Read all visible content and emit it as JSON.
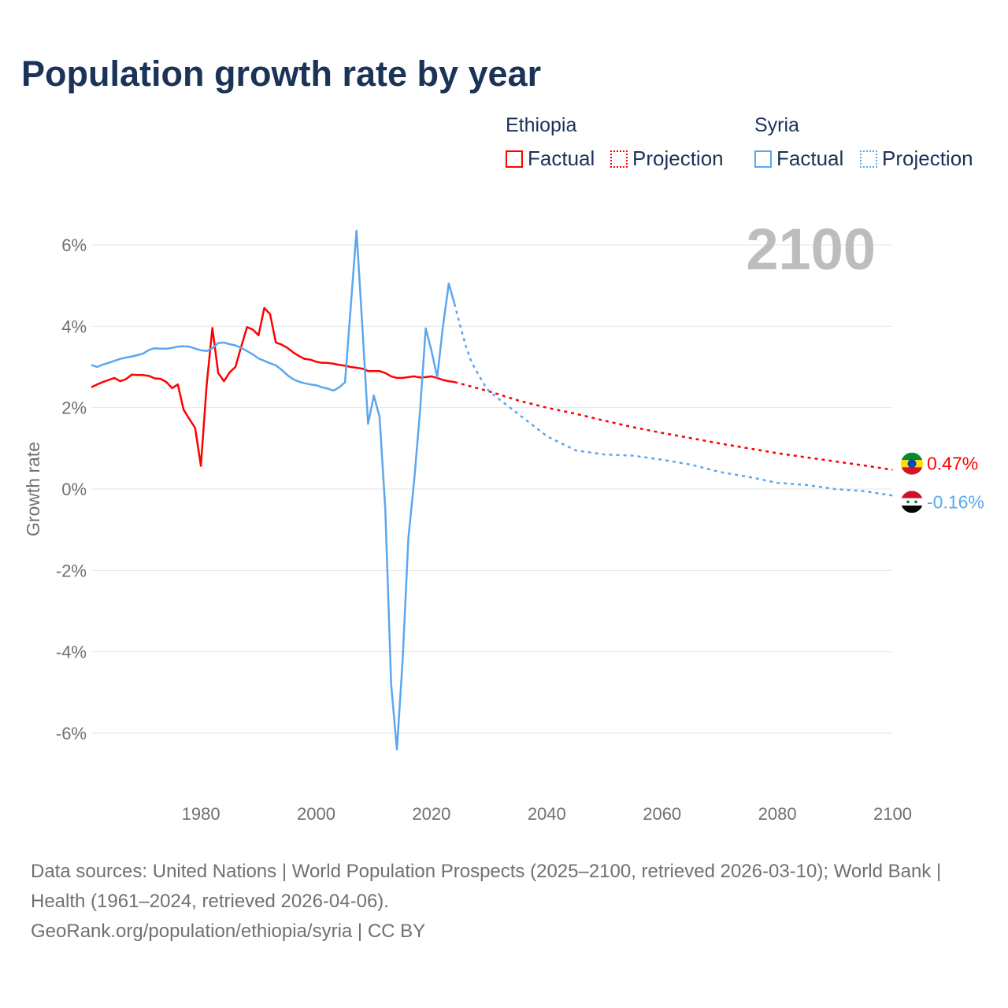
{
  "chart_data": {
    "type": "line",
    "title": "Population growth rate by year",
    "xlabel": "",
    "ylabel": "Growth rate",
    "xlim": [
      1961,
      2100
    ],
    "ylim": [
      -6.5,
      6.5
    ],
    "x_ticks": [
      "1980",
      "2000",
      "2020",
      "2040",
      "2060",
      "2080",
      "2100"
    ],
    "y_ticks": [
      "6%",
      "4%",
      "2%",
      "0%",
      "-2%",
      "-4%",
      "-6%"
    ],
    "y_tick_values": [
      6,
      4,
      2,
      0,
      -2,
      -4,
      -6
    ],
    "x_tick_values": [
      1980,
      2000,
      2020,
      2040,
      2060,
      2080,
      2100
    ],
    "grid": true,
    "year_label": "2100",
    "legend": {
      "groups": [
        {
          "name": "Ethiopia",
          "items": [
            "Factual",
            "Projection"
          ]
        },
        {
          "name": "Syria",
          "items": [
            "Factual",
            "Projection"
          ]
        }
      ],
      "placement": "top-right"
    },
    "series": [
      {
        "name": "Ethiopia",
        "color": "#ff0000",
        "end_label": "0.47%",
        "factual_start_year": 1961,
        "factual": [
          2.5,
          2.57,
          2.63,
          2.68,
          2.73,
          2.65,
          2.7,
          2.81,
          2.8,
          2.8,
          2.78,
          2.72,
          2.71,
          2.63,
          2.48,
          2.57,
          1.95,
          1.72,
          1.5,
          0.57,
          2.55,
          3.96,
          2.85,
          2.65,
          2.87,
          3.0,
          3.5,
          3.98,
          3.92,
          3.78,
          4.45,
          4.3,
          3.6,
          3.55,
          3.47,
          3.36,
          3.27,
          3.2,
          3.18,
          3.13,
          3.1,
          3.1,
          3.08,
          3.05,
          3.03,
          3.0,
          2.98,
          2.96,
          2.9,
          2.9,
          2.9,
          2.85,
          2.77,
          2.73,
          2.73,
          2.75,
          2.77,
          2.74,
          2.75,
          2.77,
          2.73,
          2.68,
          2.65,
          2.63
        ],
        "projection_years": [
          2024,
          2030,
          2035,
          2040,
          2045,
          2050,
          2055,
          2060,
          2065,
          2070,
          2075,
          2080,
          2085,
          2090,
          2095,
          2100
        ],
        "projection": [
          2.63,
          2.4,
          2.18,
          2.0,
          1.85,
          1.68,
          1.52,
          1.38,
          1.25,
          1.12,
          1.0,
          0.88,
          0.78,
          0.68,
          0.58,
          0.47
        ]
      },
      {
        "name": "Syria",
        "color": "#5ba7ef",
        "end_label": "-0.16%",
        "factual_start_year": 1961,
        "factual": [
          3.05,
          3.0,
          3.06,
          3.1,
          3.15,
          3.2,
          3.23,
          3.26,
          3.29,
          3.33,
          3.42,
          3.46,
          3.45,
          3.45,
          3.47,
          3.5,
          3.51,
          3.5,
          3.45,
          3.41,
          3.39,
          3.46,
          3.59,
          3.6,
          3.56,
          3.53,
          3.47,
          3.39,
          3.31,
          3.21,
          3.15,
          3.09,
          3.04,
          2.93,
          2.8,
          2.7,
          2.64,
          2.6,
          2.57,
          2.55,
          2.5,
          2.47,
          2.42,
          2.5,
          2.62,
          4.48,
          6.35,
          4.0,
          1.6,
          2.3,
          1.77,
          -0.5,
          -4.8,
          -6.4,
          -4.2,
          -1.2,
          0.2,
          1.9,
          3.95,
          3.4,
          2.75,
          4.0,
          5.05,
          4.55
        ],
        "projection_years": [
          2024,
          2025,
          2026,
          2027,
          2028,
          2029,
          2030,
          2035,
          2040,
          2045,
          2050,
          2055,
          2060,
          2065,
          2070,
          2075,
          2080,
          2085,
          2090,
          2095,
          2100
        ],
        "projection": [
          4.55,
          4.0,
          3.5,
          3.1,
          2.85,
          2.6,
          2.4,
          1.85,
          1.3,
          0.95,
          0.85,
          0.82,
          0.72,
          0.6,
          0.42,
          0.3,
          0.15,
          0.1,
          0.0,
          -0.05,
          -0.16
        ]
      }
    ]
  },
  "footer": {
    "sources": "Data sources: United Nations | World Population Prospects (2025–2100, retrieved 2026-03-10); World Bank | Health (1961–2024, retrieved 2026-04-06).",
    "credit": "GeoRank.org/population/ethiopia/syria | CC BY"
  }
}
